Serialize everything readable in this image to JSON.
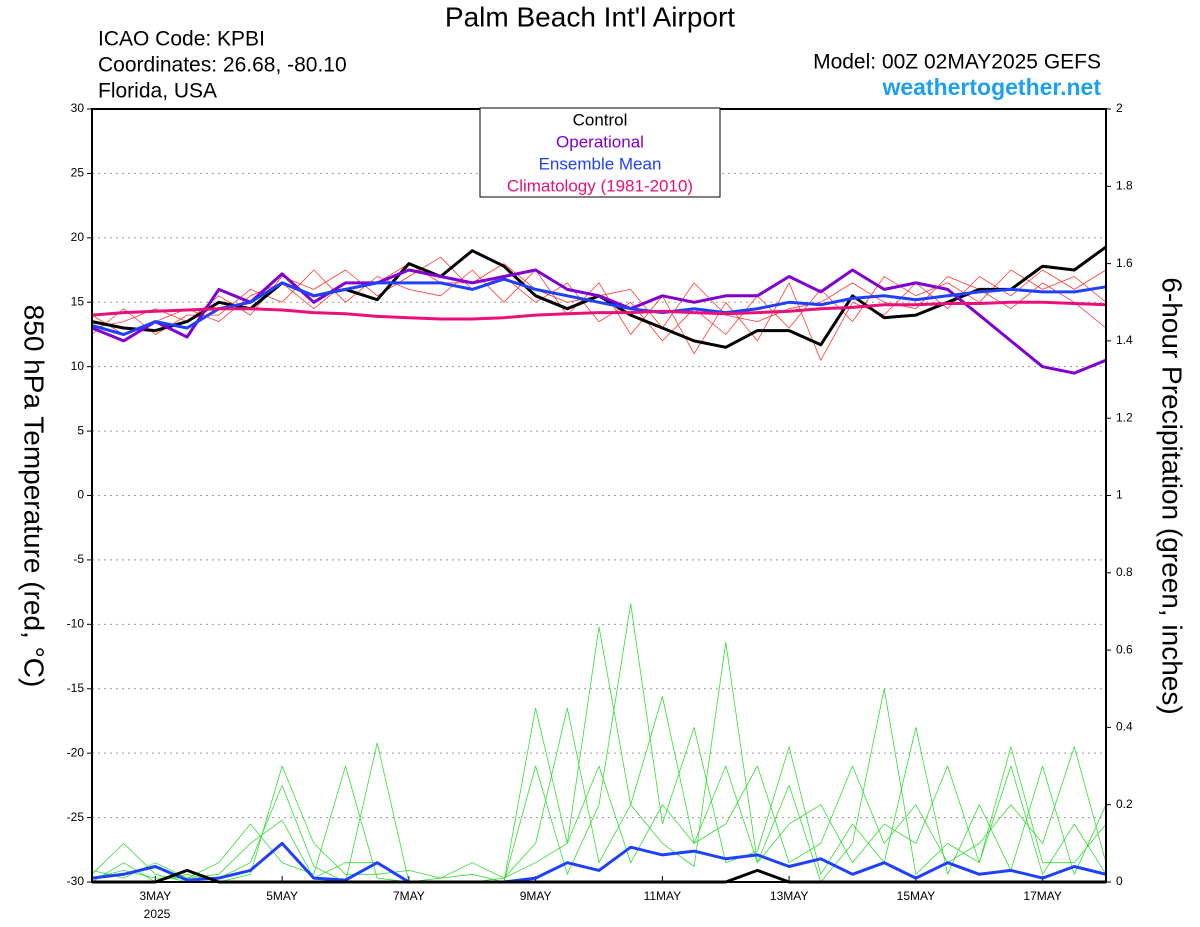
{
  "chart_data": {
    "type": "line",
    "title": "Palm Beach Int'l Airport",
    "info": [
      "ICAO Code: KPBI",
      "Coordinates: 26.68, -80.10",
      "Florida, USA"
    ],
    "model": "Model: 00Z 02MAY2025 GEFS",
    "site": "weathertogether.net",
    "ylabel": "850 hPa Temperature (red, °C)",
    "y2label": "6-hour Precipitation (green, inches)",
    "x_sublabel": "2025",
    "categories": [
      null,
      null,
      "3MAY",
      null,
      null,
      null,
      "5MAY",
      null,
      null,
      null,
      "7MAY",
      null,
      null,
      null,
      "9MAY",
      null,
      null,
      null,
      "11MAY",
      null,
      null,
      null,
      "13MAY",
      null,
      null,
      null,
      "15MAY",
      null,
      null,
      null,
      "17MAY",
      null,
      null
    ],
    "ylim": [
      -30,
      30
    ],
    "yticks": [
      -30,
      -25,
      -20,
      -15,
      -10,
      -5,
      0,
      5,
      10,
      15,
      20,
      25,
      30
    ],
    "y2lim": [
      0,
      2
    ],
    "y2ticks": [
      0,
      0.2,
      0.4,
      0.6,
      0.8,
      1,
      1.2,
      1.4,
      1.6,
      1.8,
      2
    ],
    "grid": true,
    "legend": "top",
    "series": [
      {
        "name": "Control",
        "color": "#000000",
        "values": [
          13.5,
          13,
          12.8,
          13.5,
          15,
          14.5,
          16.5,
          15.5,
          16,
          15.2,
          18,
          17,
          19,
          17.8,
          15.5,
          14.5,
          15.5,
          14,
          13,
          12,
          11.5,
          12.8,
          12.8,
          11.7,
          15.5,
          13.8,
          14,
          15,
          16,
          16,
          17.8,
          17.5,
          19.3
        ]
      },
      {
        "name": "Operational",
        "color": "#8000d0",
        "values": [
          13,
          12,
          13.5,
          12.3,
          16,
          15,
          17.2,
          15,
          16.5,
          16.5,
          17.5,
          17,
          16.5,
          17,
          17.5,
          16,
          15.5,
          14.5,
          15.5,
          15,
          15.5,
          15.5,
          17,
          15.8,
          17.5,
          16,
          16.5,
          16,
          14,
          12,
          10,
          9.5,
          10.5
        ]
      },
      {
        "name": "Ensemble Mean",
        "color": "#2040ff",
        "values": [
          13.2,
          12.5,
          13.5,
          13,
          14.5,
          15,
          16.5,
          15.5,
          16,
          16.5,
          16.5,
          16.5,
          16,
          16.8,
          16,
          15.5,
          15,
          14.5,
          14.2,
          14.5,
          14.2,
          14.5,
          15,
          14.8,
          15.3,
          15.5,
          15.2,
          15.5,
          15.8,
          16,
          15.8,
          15.8,
          16.2
        ]
      },
      {
        "name": "Climatology (1981-2010)",
        "color": "#e8107a",
        "values": [
          14,
          14.2,
          14.3,
          14.4,
          14.5,
          14.5,
          14.4,
          14.2,
          14.1,
          13.9,
          13.8,
          13.7,
          13.7,
          13.8,
          14,
          14.1,
          14.2,
          14.2,
          14.3,
          14.2,
          14.1,
          14.2,
          14.3,
          14.5,
          14.6,
          14.8,
          14.8,
          14.9,
          14.9,
          15,
          15,
          14.9,
          14.8
        ]
      }
    ],
    "extra_series": [
      {
        "color": "#2040ff",
        "axis": "y2",
        "values": [
          0.01,
          0.02,
          0.04,
          0.005,
          0.01,
          0.03,
          0.1,
          0.01,
          0.005,
          0.05,
          0,
          0,
          0,
          0,
          0.01,
          0.05,
          0.03,
          0.09,
          0.07,
          0.08,
          0.06,
          0.07,
          0.04,
          0.06,
          0.02,
          0.05,
          0.01,
          0.05,
          0.02,
          0.03,
          0.01,
          0.04,
          0.02
        ]
      },
      {
        "color": "#000000",
        "axis": "y2",
        "values": [
          0,
          0,
          0,
          0.03,
          0,
          0,
          0,
          0,
          0,
          0,
          0,
          0,
          0,
          0,
          0,
          0,
          0,
          0,
          0,
          0,
          0,
          0.03,
          0,
          0,
          0,
          0,
          0,
          0,
          0,
          0,
          0,
          0,
          0
        ]
      }
    ],
    "member_series": [
      {
        "color": "#ff3b30",
        "values": [
          13,
          13.5,
          14.5,
          13.5,
          15.5,
          14,
          17,
          16,
          17.5,
          15.5,
          17,
          18.5,
          16,
          17,
          15,
          16.5,
          13.5,
          15,
          12,
          14.5,
          12.5,
          15.5,
          13,
          16,
          13.5,
          17,
          15.5,
          16.5,
          15,
          17.5,
          16,
          17,
          15
        ]
      },
      {
        "color": "#ff3b30",
        "values": [
          12.5,
          14.5,
          12.5,
          14,
          14,
          16,
          15,
          17.5,
          15,
          17,
          16,
          15.5,
          17.5,
          15,
          17.5,
          14,
          16.5,
          12.5,
          15.5,
          11,
          15,
          12,
          16.5,
          10.5,
          15,
          14,
          16.5,
          14.5,
          17,
          15.5,
          17.5,
          16,
          17.5
        ]
      },
      {
        "color": "#ff3b30",
        "values": [
          14,
          12.5,
          13.5,
          14.5,
          13.5,
          15.5,
          16.5,
          14.5,
          16.5,
          16.5,
          18,
          16.5,
          16.5,
          18,
          16,
          15,
          15.5,
          16,
          13,
          16.5,
          14,
          13.5,
          14.5,
          15,
          16.5,
          15,
          14.5,
          17,
          16,
          14.5,
          16.5,
          15,
          13
        ]
      },
      {
        "color": "#33dd33",
        "axis": "y2",
        "values": [
          0.02,
          0.1,
          0.02,
          0,
          0.01,
          0.05,
          0.25,
          0.04,
          0,
          0.36,
          0,
          0,
          0,
          0,
          0.45,
          0.1,
          0.66,
          0.2,
          0.1,
          0.04,
          0.62,
          0.05,
          0.25,
          0,
          0.1,
          0.5,
          0.02,
          0.1,
          0.05,
          0.3,
          0.02,
          0.15,
          0.02
        ]
      },
      {
        "color": "#33dd33",
        "axis": "y2",
        "values": [
          0.01,
          0.03,
          0.01,
          0.01,
          0.02,
          0.1,
          0.16,
          0.01,
          0.05,
          0.05,
          0,
          0.01,
          0.02,
          0,
          0.3,
          0.02,
          0.2,
          0.72,
          0.15,
          0.4,
          0.05,
          0.08,
          0.35,
          0.02,
          0.15,
          0.05,
          0.4,
          0.02,
          0.2,
          0.03,
          0.3,
          0.02,
          0.2
        ]
      },
      {
        "color": "#33dd33",
        "axis": "y2",
        "values": [
          0,
          0.05,
          0,
          0.02,
          0,
          0.02,
          0.3,
          0.1,
          0.02,
          0.02,
          0.03,
          0.01,
          0.05,
          0.01,
          0.1,
          0.45,
          0.05,
          0.2,
          0.48,
          0.1,
          0.3,
          0.05,
          0.15,
          0.2,
          0.05,
          0.15,
          0.1,
          0.3,
          0.05,
          0.35,
          0.05,
          0.05,
          0.15
        ]
      },
      {
        "color": "#33dd33",
        "axis": "y2",
        "values": [
          0.03,
          0.01,
          0.05,
          0.01,
          0.05,
          0.15,
          0.05,
          0.02,
          0.3,
          0.01,
          0,
          0,
          0,
          0.01,
          0.05,
          0.1,
          0.3,
          0.05,
          0.2,
          0.1,
          0.15,
          0.3,
          0.05,
          0.1,
          0.3,
          0.1,
          0.2,
          0.05,
          0.1,
          0.2,
          0.1,
          0.35,
          0.05
        ]
      }
    ]
  }
}
